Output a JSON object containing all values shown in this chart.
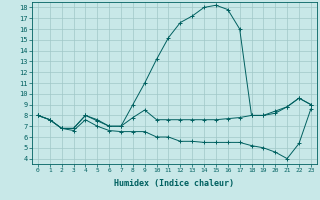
{
  "xlabel": "Humidex (Indice chaleur)",
  "xlim": [
    -0.5,
    23.5
  ],
  "ylim": [
    3.5,
    18.5
  ],
  "xticks": [
    0,
    1,
    2,
    3,
    4,
    5,
    6,
    7,
    8,
    9,
    10,
    11,
    12,
    13,
    14,
    15,
    16,
    17,
    18,
    19,
    20,
    21,
    22,
    23
  ],
  "yticks": [
    4,
    5,
    6,
    7,
    8,
    9,
    10,
    11,
    12,
    13,
    14,
    15,
    16,
    17,
    18
  ],
  "background_color": "#c8e8e8",
  "grid_color": "#a0c8c8",
  "line_color": "#006060",
  "lines": [
    {
      "x": [
        0,
        1,
        2,
        3,
        4,
        5,
        6,
        7,
        8,
        9,
        10,
        11,
        12,
        13,
        14,
        15,
        16,
        17,
        18,
        19,
        20,
        21,
        22,
        23
      ],
      "y": [
        8.0,
        7.6,
        6.8,
        6.8,
        8.0,
        7.6,
        7.0,
        7.0,
        9.0,
        11.0,
        13.2,
        15.2,
        16.6,
        17.2,
        18.0,
        18.2,
        17.8,
        16.0,
        8.0,
        8.0,
        8.4,
        8.8,
        9.6,
        9.0
      ]
    },
    {
      "x": [
        0,
        1,
        2,
        3,
        4,
        5,
        6,
        7,
        8,
        9,
        10,
        11,
        12,
        13,
        14,
        15,
        16,
        17,
        18,
        19,
        20,
        21,
        22,
        23
      ],
      "y": [
        8.0,
        7.6,
        6.8,
        6.8,
        8.0,
        7.5,
        7.0,
        7.0,
        7.8,
        8.5,
        7.6,
        7.6,
        7.6,
        7.6,
        7.6,
        7.6,
        7.7,
        7.8,
        8.0,
        8.0,
        8.2,
        8.8,
        9.6,
        9.0
      ]
    },
    {
      "x": [
        0,
        1,
        2,
        3,
        4,
        5,
        6,
        7,
        8,
        9,
        10,
        11,
        12,
        13,
        14,
        15,
        16,
        17,
        18,
        19,
        20,
        21,
        22,
        23
      ],
      "y": [
        8.0,
        7.6,
        6.8,
        6.6,
        7.6,
        7.0,
        6.6,
        6.5,
        6.5,
        6.5,
        6.0,
        6.0,
        5.6,
        5.6,
        5.5,
        5.5,
        5.5,
        5.5,
        5.2,
        5.0,
        4.6,
        4.0,
        5.4,
        8.6
      ]
    }
  ]
}
